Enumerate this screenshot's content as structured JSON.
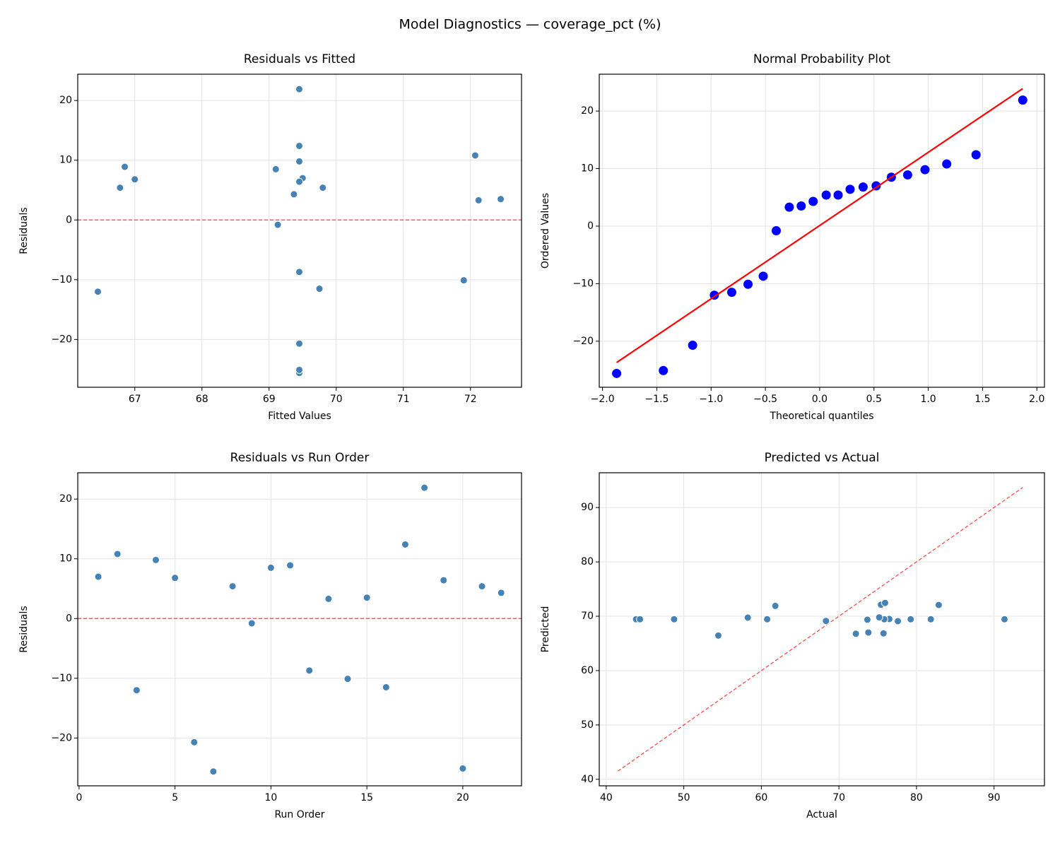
{
  "title": "Model Diagnostics — coverage_pct (%)",
  "chart_data": [
    {
      "type": "scatter",
      "title": "Residuals vs Fitted",
      "xlabel": "Fitted Values",
      "ylabel": "Residuals",
      "x": [
        69.5,
        72.07,
        66.45,
        69.45,
        67.0,
        69.45,
        69.45,
        66.78,
        69.13,
        69.1,
        66.85,
        69.45,
        72.12,
        71.9,
        72.45,
        69.75,
        69.45,
        69.45,
        69.45,
        69.45,
        69.8,
        69.37
      ],
      "values": [
        7.0,
        10.8,
        -12.0,
        9.8,
        6.8,
        -20.7,
        -25.6,
        5.4,
        -0.8,
        8.5,
        8.9,
        -8.7,
        3.3,
        -10.1,
        3.5,
        -11.5,
        12.4,
        21.9,
        6.4,
        -25.1,
        5.4,
        4.3
      ],
      "color": "#4682b4",
      "xlim": [
        66.15,
        72.76
      ],
      "ylim": [
        -28.0,
        24.4
      ],
      "xticks": [
        67,
        68,
        69,
        70,
        71,
        72
      ],
      "yticks": [
        {
          "value": -20,
          "label": "−20"
        },
        {
          "value": -10,
          "label": "−10"
        },
        0,
        10,
        20
      ],
      "grid": true,
      "hline": {
        "value": 0,
        "color": "#ff0000",
        "style": "dashed"
      }
    },
    {
      "type": "scatter",
      "title": "Normal Probability Plot",
      "xlabel": "Theoretical quantiles",
      "ylabel": "Ordered Values",
      "x": [
        -1.87,
        -1.44,
        -1.17,
        -0.97,
        -0.81,
        -0.66,
        -0.52,
        -0.4,
        -0.28,
        -0.17,
        -0.06,
        0.06,
        0.17,
        0.28,
        0.4,
        0.52,
        0.66,
        0.81,
        0.97,
        1.17,
        1.44,
        1.87
      ],
      "values": [
        -25.6,
        -25.1,
        -20.7,
        -12.0,
        -11.5,
        -10.1,
        -8.7,
        -0.8,
        3.3,
        3.5,
        4.3,
        5.4,
        5.4,
        6.4,
        6.8,
        7.0,
        8.5,
        8.9,
        9.8,
        10.8,
        12.4,
        21.9
      ],
      "color": "#0000ff",
      "xlim": [
        -2.03,
        2.07
      ],
      "ylim": [
        -28.0,
        26.4
      ],
      "xticks": [
        {
          "value": -2.0,
          "label": "−2.0"
        },
        {
          "value": -1.5,
          "label": "−1.5"
        },
        {
          "value": -1.0,
          "label": "−1.0"
        },
        {
          "value": -0.5,
          "label": "−0.5"
        },
        {
          "value": 0,
          "label": "0.0"
        },
        {
          "value": 0.5,
          "label": "0.5"
        },
        {
          "value": 1.0,
          "label": "1.0"
        },
        {
          "value": 1.5,
          "label": "1.5"
        },
        {
          "value": 2.0,
          "label": "2.0"
        }
      ],
      "yticks": [
        {
          "value": -20,
          "label": "−20"
        },
        {
          "value": -10,
          "label": "−10"
        },
        0,
        10,
        20
      ],
      "grid": true,
      "fit_line": {
        "x": [
          -1.87,
          1.87
        ],
        "values": [
          -23.7,
          23.9
        ],
        "color": "#ff0000",
        "style": "solid"
      }
    },
    {
      "type": "scatter",
      "title": "Residuals vs Run Order",
      "xlabel": "Run Order",
      "ylabel": "Residuals",
      "x": [
        1,
        2,
        3,
        4,
        5,
        6,
        7,
        8,
        9,
        10,
        11,
        12,
        13,
        14,
        15,
        16,
        17,
        18,
        19,
        20,
        21,
        22
      ],
      "values": [
        7.0,
        10.8,
        -12.0,
        9.8,
        6.8,
        -20.7,
        -25.6,
        5.4,
        -0.8,
        8.5,
        8.9,
        -8.7,
        3.3,
        -10.1,
        3.5,
        -11.5,
        12.4,
        21.9,
        6.4,
        -25.1,
        5.4,
        4.3
      ],
      "color": "#4682b4",
      "xlim": [
        -0.07,
        23.06
      ],
      "ylim": [
        -28.0,
        24.4
      ],
      "xticks": [
        0,
        5,
        10,
        15,
        20
      ],
      "yticks": [
        {
          "value": -20,
          "label": "−20"
        },
        {
          "value": -10,
          "label": "−10"
        },
        0,
        10,
        20
      ],
      "grid": true,
      "hline": {
        "value": 0,
        "color": "#ff0000",
        "style": "dashed"
      }
    },
    {
      "type": "scatter",
      "title": "Predicted vs Actual",
      "xlabel": "Actual",
      "ylabel": "Predicted",
      "x": [
        76.5,
        82.87,
        54.45,
        79.25,
        73.8,
        48.75,
        43.85,
        72.18,
        68.33,
        77.6,
        75.75,
        60.75,
        75.42,
        61.8,
        75.95,
        58.25,
        81.85,
        91.35,
        75.85,
        44.35,
        75.2,
        73.67
      ],
      "values": [
        69.5,
        72.07,
        66.45,
        69.45,
        67.0,
        69.45,
        69.45,
        66.78,
        69.13,
        69.1,
        66.85,
        69.45,
        72.12,
        71.9,
        72.45,
        69.75,
        69.45,
        69.45,
        69.45,
        69.45,
        69.8,
        69.37
      ],
      "color": "#4682b4",
      "xlim": [
        39.1,
        96.5
      ],
      "ylim": [
        38.8,
        96.4
      ],
      "xticks": [
        40,
        50,
        60,
        70,
        80,
        90
      ],
      "yticks": [
        40,
        50,
        60,
        70,
        80,
        90
      ],
      "grid": true,
      "reference_line": {
        "x": [
          41.5,
          93.7
        ],
        "values": [
          41.5,
          93.7
        ],
        "color": "#ff0000",
        "style": "dashed"
      }
    }
  ]
}
